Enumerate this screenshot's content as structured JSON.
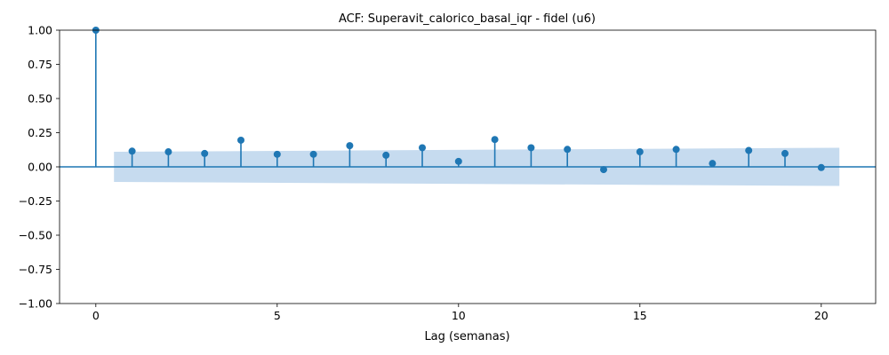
{
  "chart_data": {
    "type": "stem",
    "title": "ACF: Superavit_calorico_basal_iqr - fidel (u6)",
    "xlabel": "Lag (semanas)",
    "ylabel": "",
    "xlim": [
      -1,
      21.5
    ],
    "ylim": [
      -1.0,
      1.0
    ],
    "xticks": [
      0,
      5,
      10,
      15,
      20
    ],
    "xtick_labels": [
      "0",
      "5",
      "10",
      "15",
      "20"
    ],
    "yticks": [
      1.0,
      0.75,
      0.5,
      0.25,
      0.0,
      -0.25,
      -0.5,
      -0.75,
      -1.0
    ],
    "ytick_labels": [
      "1.00",
      "0.75",
      "0.50",
      "0.25",
      "0.00",
      "−0.25",
      "−0.50",
      "−0.75",
      "−1.00"
    ],
    "grid": false,
    "legend": "none",
    "colors": {
      "stem": "#1f77b4",
      "confidence_band": "#c6dbef",
      "baseline": "#1f77b4"
    },
    "lags": [
      0,
      1,
      2,
      3,
      4,
      5,
      6,
      7,
      8,
      9,
      10,
      11,
      12,
      13,
      14,
      15,
      16,
      17,
      18,
      19,
      20
    ],
    "acf": [
      1.0,
      0.115,
      0.11,
      0.098,
      0.195,
      0.092,
      0.092,
      0.155,
      0.085,
      0.14,
      0.04,
      0.2,
      0.14,
      0.128,
      -0.02,
      0.11,
      0.128,
      0.025,
      0.12,
      0.098,
      -0.005
    ],
    "confidence_band": {
      "x_range": [
        0.5,
        20.5
      ],
      "upper": [
        0.11,
        0.14
      ],
      "lower": [
        -0.11,
        -0.14
      ]
    }
  }
}
